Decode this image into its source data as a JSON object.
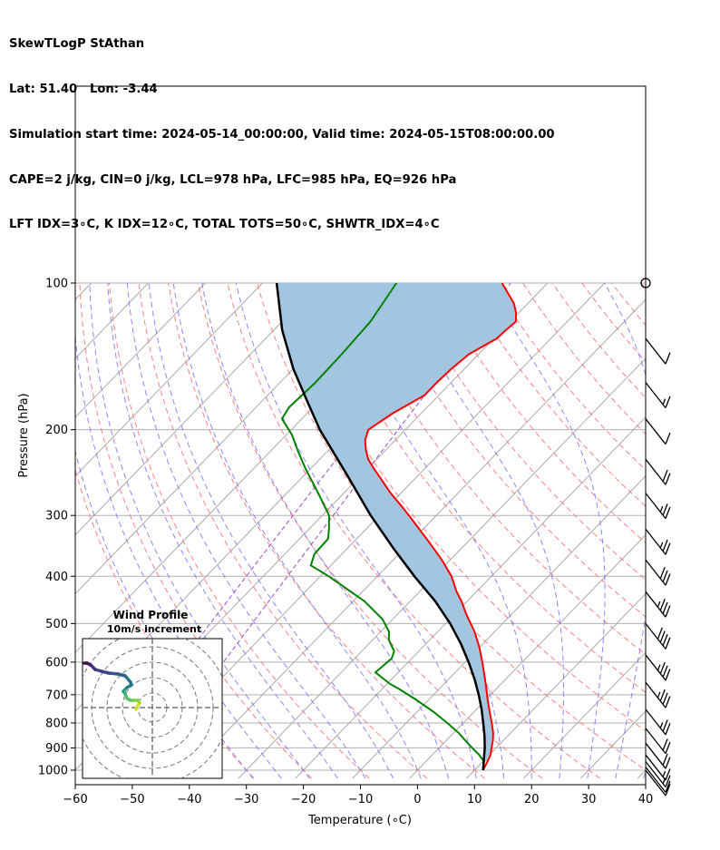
{
  "header": {
    "lines": [
      "SkewTLogP StAthan",
      "Lat: 51.40   Lon: -3.44",
      "Simulation start time: 2024-05-14_00:00:00, Valid time: 2024-05-15T08:00:00.00",
      "CAPE=2 j/kg, CIN=0 j/kg, LCL=978 hPa, LFC=985 hPa, EQ=926 hPa",
      "LFT IDX=3∘C, K IDX=12∘C, TOTAL TOTS=50∘C, SHWTR_IDX=4∘C"
    ]
  },
  "colors": {
    "temperature": "#ff0000",
    "dewpoint": "#008000",
    "parcel": "#000000",
    "cape_fill": "#a3c6e0",
    "dry_adiabat": "#ff6b6b",
    "moist_adiabat": "#6a6aff",
    "mixing_ratio": "#9b4ccf",
    "isotherm": "#aaaaaa",
    "isobar": "#b0b0b0"
  },
  "chart_data": {
    "type": "line",
    "subtype": "skewT-logP",
    "xlabel": "Temperature (∘C)",
    "ylabel": "Pressure (hPa)",
    "xlim": [
      -60,
      40
    ],
    "ylim": [
      1040,
      100
    ],
    "y_scale": "log",
    "grid": true,
    "x_ticks": [
      -60,
      -50,
      -40,
      -30,
      -20,
      -10,
      0,
      10,
      20,
      30,
      40
    ],
    "y_ticks": [
      1000,
      900,
      800,
      700,
      600,
      500,
      400,
      300,
      200,
      100
    ],
    "series": [
      {
        "name": "temperature",
        "pressure": [
          1000,
          960,
          930,
          900,
          870,
          840,
          800,
          760,
          720,
          680,
          640,
          600,
          560,
          520,
          480,
          450,
          430,
          400,
          370,
          340,
          310,
          290,
          270,
          250,
          240,
          230,
          220,
          210,
          200,
          185,
          170,
          160,
          150,
          145,
          140,
          130,
          125,
          120,
          115,
          110,
          100
        ],
        "values": [
          11.5,
          10.8,
          10.2,
          9.2,
          8.2,
          7.0,
          5.0,
          2.8,
          0.5,
          -1.8,
          -4.3,
          -7.0,
          -10.0,
          -13.5,
          -17.8,
          -21.0,
          -23.5,
          -27.0,
          -31.5,
          -36.8,
          -42.7,
          -47.0,
          -51.8,
          -56.5,
          -59.0,
          -61.5,
          -63.5,
          -65.3,
          -66.5,
          -65.0,
          -62.5,
          -62.5,
          -62.3,
          -62.0,
          -61.7,
          -59.5,
          -59.3,
          -59.0,
          -60.5,
          -62.5,
          -68.0
        ]
      },
      {
        "name": "dewpoint",
        "pressure": [
          1000,
          960,
          930,
          900,
          870,
          840,
          800,
          760,
          720,
          680,
          665,
          630,
          590,
          570,
          540,
          520,
          490,
          450,
          400,
          380,
          360,
          335,
          320,
          300,
          270,
          240,
          220,
          205,
          190,
          180,
          160,
          140,
          120,
          100
        ],
        "values": [
          11.5,
          10.2,
          8.2,
          5.8,
          3.4,
          1.0,
          -2.8,
          -7.0,
          -11.8,
          -17.2,
          -19.5,
          -24.0,
          -23.5,
          -24.3,
          -27.2,
          -28.5,
          -31.8,
          -38.0,
          -48.5,
          -53.5,
          -54.8,
          -55.0,
          -56.5,
          -58.8,
          -64.5,
          -71.0,
          -75.5,
          -79.0,
          -83.5,
          -84.2,
          -83.8,
          -84.0,
          -84.5,
          -86.5
        ]
      },
      {
        "name": "parcel",
        "pressure": [
          1000,
          950,
          900,
          850,
          800,
          750,
          700,
          650,
          600,
          550,
          500,
          450,
          400,
          350,
          300,
          250,
          200,
          175,
          150,
          125,
          100
        ],
        "values": [
          11.5,
          9.8,
          8.0,
          5.9,
          3.5,
          0.9,
          -2.1,
          -5.5,
          -9.4,
          -13.9,
          -19.2,
          -25.6,
          -33.5,
          -42.0,
          -51.5,
          -62.0,
          -75.0,
          -82.0,
          -90.0,
          -98.5,
          -107.5
        ]
      }
    ],
    "wind_barbs_pressure": [
      100,
      130,
      160,
      190,
      230,
      270,
      320,
      370,
      430,
      500,
      580,
      660,
      750,
      820,
      880,
      930,
      960,
      985,
      1000
    ],
    "wind_barbs_speed_kt": [
      0,
      10,
      15,
      10,
      20,
      25,
      25,
      30,
      35,
      40,
      35,
      35,
      25,
      20,
      20,
      15,
      15,
      10,
      10
    ],
    "inset": {
      "title": "Wind Profile",
      "subtitle": "10m/s increment"
    }
  }
}
